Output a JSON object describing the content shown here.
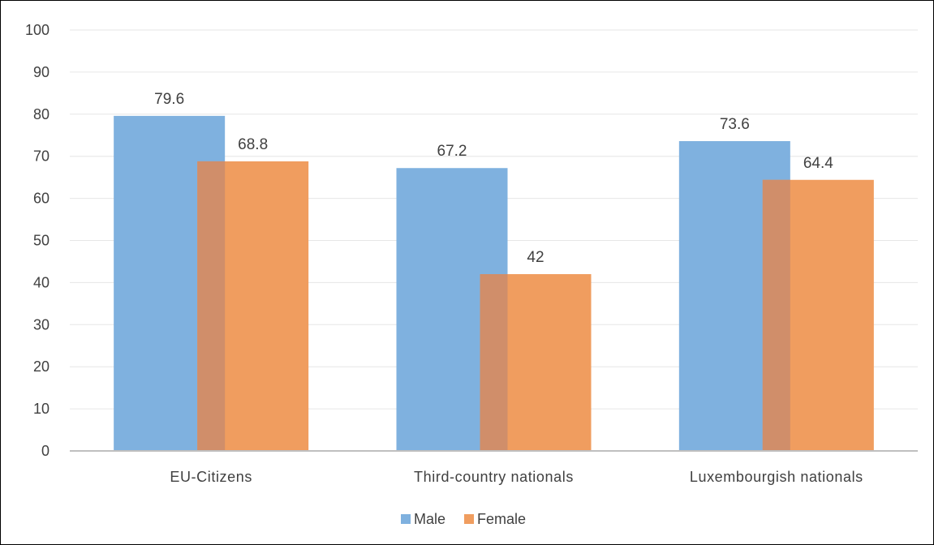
{
  "chart_data": {
    "type": "bar",
    "title": "",
    "xlabel": "",
    "ylabel": "",
    "ylim": [
      0,
      100
    ],
    "yticks": [
      0,
      10,
      20,
      30,
      40,
      50,
      60,
      70,
      80,
      90,
      100
    ],
    "categories": [
      "EU-Citizens",
      "Third-country nationals",
      "Luxembourgish nationals"
    ],
    "series": [
      {
        "name": "Male",
        "values": [
          79.6,
          67.2,
          73.6
        ],
        "color": "#7fb1df",
        "data_labels": [
          "79.6",
          "67.2",
          "73.6"
        ]
      },
      {
        "name": "Female",
        "values": [
          68.8,
          42,
          64.4
        ],
        "color": "#f09d5f",
        "data_labels": [
          "68.8",
          "42",
          "64.4"
        ]
      }
    ],
    "overlap_color": "#d08e6a",
    "grid": true,
    "legend": "bottom-center"
  }
}
